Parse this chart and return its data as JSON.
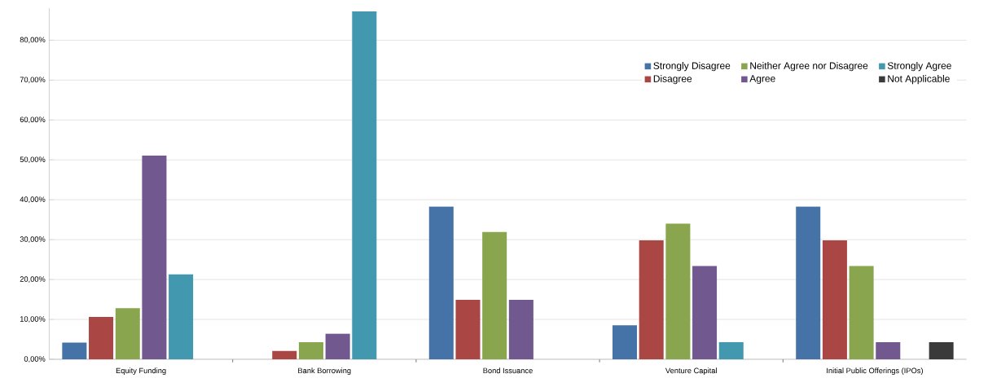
{
  "chart_data": {
    "type": "bar",
    "categories": [
      "Equity Funding",
      "Bank Borrowing",
      "Bond Issuance",
      "Venture Capital",
      "Initial Public Offerings (IPOs)"
    ],
    "series": [
      {
        "name": "Strongly Disagree",
        "color": "#4572a7",
        "values": [
          4.2,
          0,
          38.3,
          8.5,
          38.3
        ]
      },
      {
        "name": "Disagree",
        "color": "#aa4643",
        "values": [
          10.6,
          2.1,
          14.9,
          29.8,
          29.8
        ]
      },
      {
        "name": "Neither Agree nor Disagree",
        "color": "#89a54e",
        "values": [
          12.8,
          4.3,
          31.9,
          34.0,
          23.4
        ]
      },
      {
        "name": "Agree",
        "color": "#71588f",
        "values": [
          51.1,
          6.4,
          14.9,
          23.4,
          4.3
        ]
      },
      {
        "name": "Strongly Agree",
        "color": "#4198af",
        "values": [
          21.3,
          87.2,
          0,
          4.3,
          0
        ]
      },
      {
        "name": "Not Applicable",
        "color": "#3a3a3a",
        "values": [
          0,
          0,
          0,
          0,
          4.3
        ]
      }
    ],
    "ylim": [
      0,
      88
    ],
    "yticks": [
      {
        "value": 0,
        "label": "0,00%"
      },
      {
        "value": 10,
        "label": "10,00%"
      },
      {
        "value": 20,
        "label": "20,00%"
      },
      {
        "value": 30,
        "label": "30,00%"
      },
      {
        "value": 40,
        "label": "40,00%"
      },
      {
        "value": 50,
        "label": "50,00%"
      },
      {
        "value": 60,
        "label": "60,00%"
      },
      {
        "value": 70,
        "label": "70,00%"
      },
      {
        "value": 80,
        "label": "80,00%"
      }
    ],
    "grid": "y",
    "legend": "top right"
  }
}
